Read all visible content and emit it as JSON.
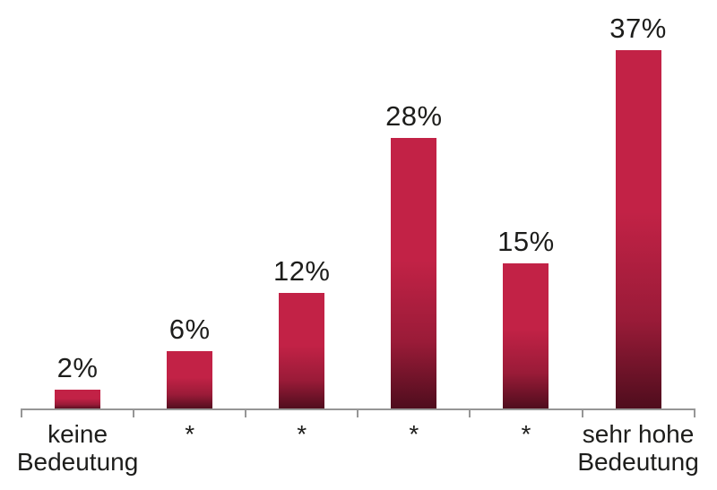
{
  "chart_data": {
    "type": "bar",
    "categories": [
      "keine\nBedeutung",
      "*",
      "*",
      "*",
      "*",
      "sehr hohe\nBedeutung"
    ],
    "values": [
      2,
      6,
      12,
      28,
      15,
      37
    ],
    "value_labels": [
      "2%",
      "6%",
      "12%",
      "28%",
      "15%",
      "37%"
    ],
    "title": "",
    "xlabel": "",
    "ylabel": "",
    "ylim": [
      0,
      40
    ],
    "grid": false,
    "legend": null,
    "colors": {
      "bar_top": "#c22246",
      "bar_mid": "#9a1b38",
      "bar_bottom": "#4e0d1d",
      "axis": "#969696",
      "text": "#1d1d1b"
    }
  }
}
